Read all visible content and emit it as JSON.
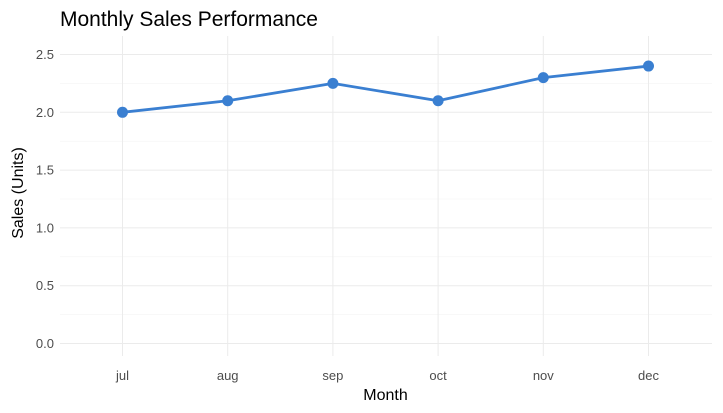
{
  "chart_data": {
    "type": "line",
    "title": "Monthly Sales Performance",
    "xlabel": "Month",
    "ylabel": "Sales (Units)",
    "categories": [
      "jul",
      "aug",
      "sep",
      "oct",
      "nov",
      "dec"
    ],
    "series": [
      {
        "values": [
          2.0,
          2.1,
          2.25,
          2.1,
          2.3,
          2.4
        ],
        "color": "#3a7fd1"
      }
    ],
    "ylim": [
      0,
      2.5
    ],
    "yticks": [
      "0.0",
      "0.5",
      "1.0",
      "1.5",
      "2.0",
      "2.5"
    ],
    "grid": true,
    "legend": "none"
  }
}
